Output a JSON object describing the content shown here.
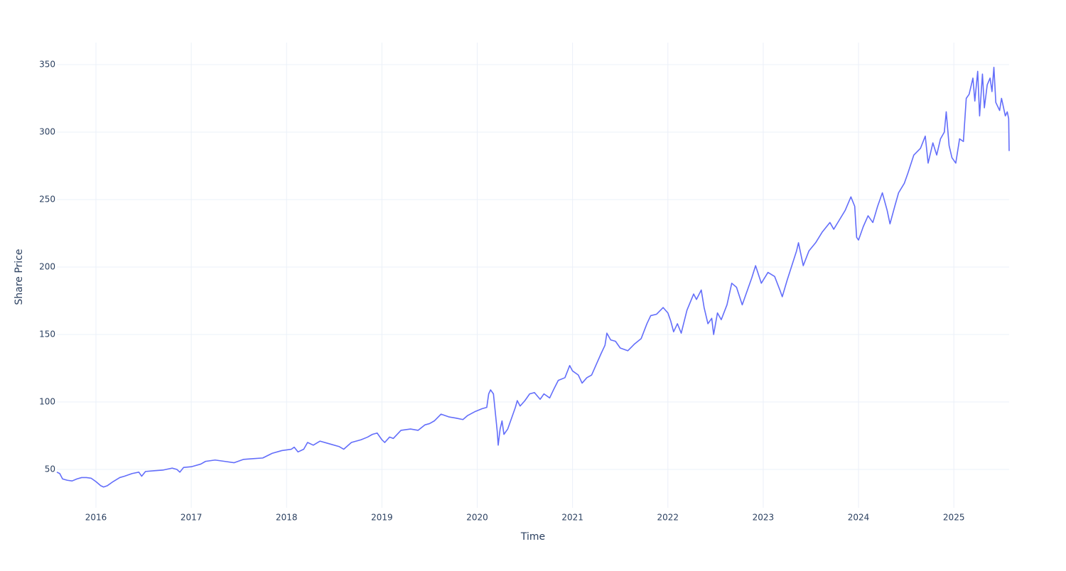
{
  "chart_data": {
    "type": "line",
    "xlabel": "Time",
    "ylabel": "Share Price",
    "x": [
      2015.59,
      2015.62,
      2015.65,
      2015.7,
      2015.75,
      2015.8,
      2015.85,
      2015.9,
      2015.95,
      2016.0,
      2016.05,
      2016.08,
      2016.12,
      2016.18,
      2016.25,
      2016.3,
      2016.38,
      2016.45,
      2016.48,
      2016.52,
      2016.6,
      2016.7,
      2016.8,
      2016.85,
      2016.88,
      2016.92,
      2017.0,
      2017.1,
      2017.15,
      2017.25,
      2017.35,
      2017.45,
      2017.55,
      2017.65,
      2017.75,
      2017.85,
      2017.95,
      2018.05,
      2018.08,
      2018.12,
      2018.18,
      2018.22,
      2018.28,
      2018.35,
      2018.45,
      2018.55,
      2018.6,
      2018.68,
      2018.78,
      2018.85,
      2018.9,
      2018.95,
      2019.0,
      2019.03,
      2019.08,
      2019.12,
      2019.2,
      2019.3,
      2019.38,
      2019.45,
      2019.5,
      2019.55,
      2019.62,
      2019.7,
      2019.78,
      2019.85,
      2019.9,
      2019.98,
      2020.05,
      2020.1,
      2020.12,
      2020.14,
      2020.17,
      2020.19,
      2020.21,
      2020.22,
      2020.24,
      2020.26,
      2020.28,
      2020.32,
      2020.36,
      2020.4,
      2020.42,
      2020.45,
      2020.5,
      2020.55,
      2020.6,
      2020.66,
      2020.7,
      2020.76,
      2020.8,
      2020.85,
      2020.92,
      2020.97,
      2021.0,
      2021.06,
      2021.1,
      2021.15,
      2021.2,
      2021.25,
      2021.3,
      2021.34,
      2021.36,
      2021.4,
      2021.45,
      2021.5,
      2021.58,
      2021.65,
      2021.72,
      2021.78,
      2021.82,
      2021.88,
      2021.95,
      2022.0,
      2022.03,
      2022.06,
      2022.1,
      2022.14,
      2022.2,
      2022.27,
      2022.3,
      2022.35,
      2022.38,
      2022.42,
      2022.46,
      2022.48,
      2022.52,
      2022.56,
      2022.62,
      2022.67,
      2022.72,
      2022.78,
      2022.82,
      2022.88,
      2022.92,
      2022.98,
      2023.05,
      2023.12,
      2023.18,
      2023.2,
      2023.25,
      2023.3,
      2023.35,
      2023.37,
      2023.42,
      2023.48,
      2023.55,
      2023.62,
      2023.7,
      2023.74,
      2023.8,
      2023.86,
      2023.92,
      2023.96,
      2023.98,
      2024.0,
      2024.05,
      2024.1,
      2024.15,
      2024.2,
      2024.25,
      2024.3,
      2024.33,
      2024.38,
      2024.42,
      2024.48,
      2024.52,
      2024.58,
      2024.65,
      2024.7,
      2024.73,
      2024.78,
      2024.82,
      2024.86,
      2024.9,
      2024.92,
      2024.95,
      2024.98,
      2025.02,
      2025.06,
      2025.1,
      2025.13,
      2025.16,
      2025.2,
      2025.22,
      2025.25,
      2025.27,
      2025.3,
      2025.32,
      2025.35,
      2025.38,
      2025.4,
      2025.42,
      2025.44,
      2025.48,
      2025.5,
      2025.54,
      2025.56,
      2025.575,
      2025.58
    ],
    "series": [
      {
        "color": "#636efa",
        "values": [
          48,
          47,
          43,
          42,
          41.5,
          43,
          44,
          44,
          43.5,
          41,
          38,
          37,
          38,
          41,
          44,
          45,
          47,
          48,
          45,
          48.5,
          49,
          49.5,
          51,
          50,
          48,
          51.5,
          52,
          54,
          56,
          57,
          56,
          55,
          57.5,
          58,
          58.5,
          62,
          64,
          65,
          66.5,
          63,
          65,
          70,
          68,
          71,
          69,
          67,
          65,
          70,
          72,
          74,
          76,
          77,
          72,
          70,
          74,
          73,
          79,
          80,
          79,
          83,
          84,
          86,
          91,
          89,
          88,
          87,
          90,
          93,
          95,
          96,
          106,
          109,
          106,
          92,
          78,
          68,
          80,
          86,
          76,
          80,
          88,
          96,
          101,
          97,
          101,
          106,
          107,
          102,
          106,
          103,
          109,
          116,
          118,
          127,
          123,
          120,
          114,
          118,
          120,
          128,
          136,
          142,
          151,
          146,
          145,
          140,
          138,
          143,
          147,
          158,
          164,
          165,
          170,
          166,
          160,
          152,
          158,
          151,
          168,
          180,
          176,
          183,
          170,
          158,
          162,
          150,
          166,
          161,
          172,
          188,
          185,
          172,
          180,
          192,
          201,
          188,
          196,
          193,
          182,
          178,
          190,
          201,
          212,
          218,
          201,
          212,
          218,
          226,
          233,
          228,
          235,
          242,
          252,
          245,
          222,
          220,
          230,
          238,
          233,
          245,
          255,
          242,
          232,
          245,
          255,
          262,
          270,
          283,
          288,
          297,
          277,
          292,
          283,
          295,
          300,
          315,
          290,
          281,
          277,
          295,
          293,
          325,
          328,
          340,
          323,
          345,
          312,
          343,
          318,
          335,
          340,
          330,
          348,
          322,
          316,
          325,
          312,
          315,
          310,
          286
        ]
      }
    ],
    "xlim": [
      2015.59,
      2025.58
    ],
    "xticks": [
      2016,
      2017,
      2018,
      2019,
      2020,
      2021,
      2022,
      2023,
      2024,
      2025
    ],
    "ylim": [
      21.6,
      366.3
    ],
    "yticks": [
      50,
      100,
      150,
      200,
      250,
      300,
      350
    ],
    "grid": true
  }
}
